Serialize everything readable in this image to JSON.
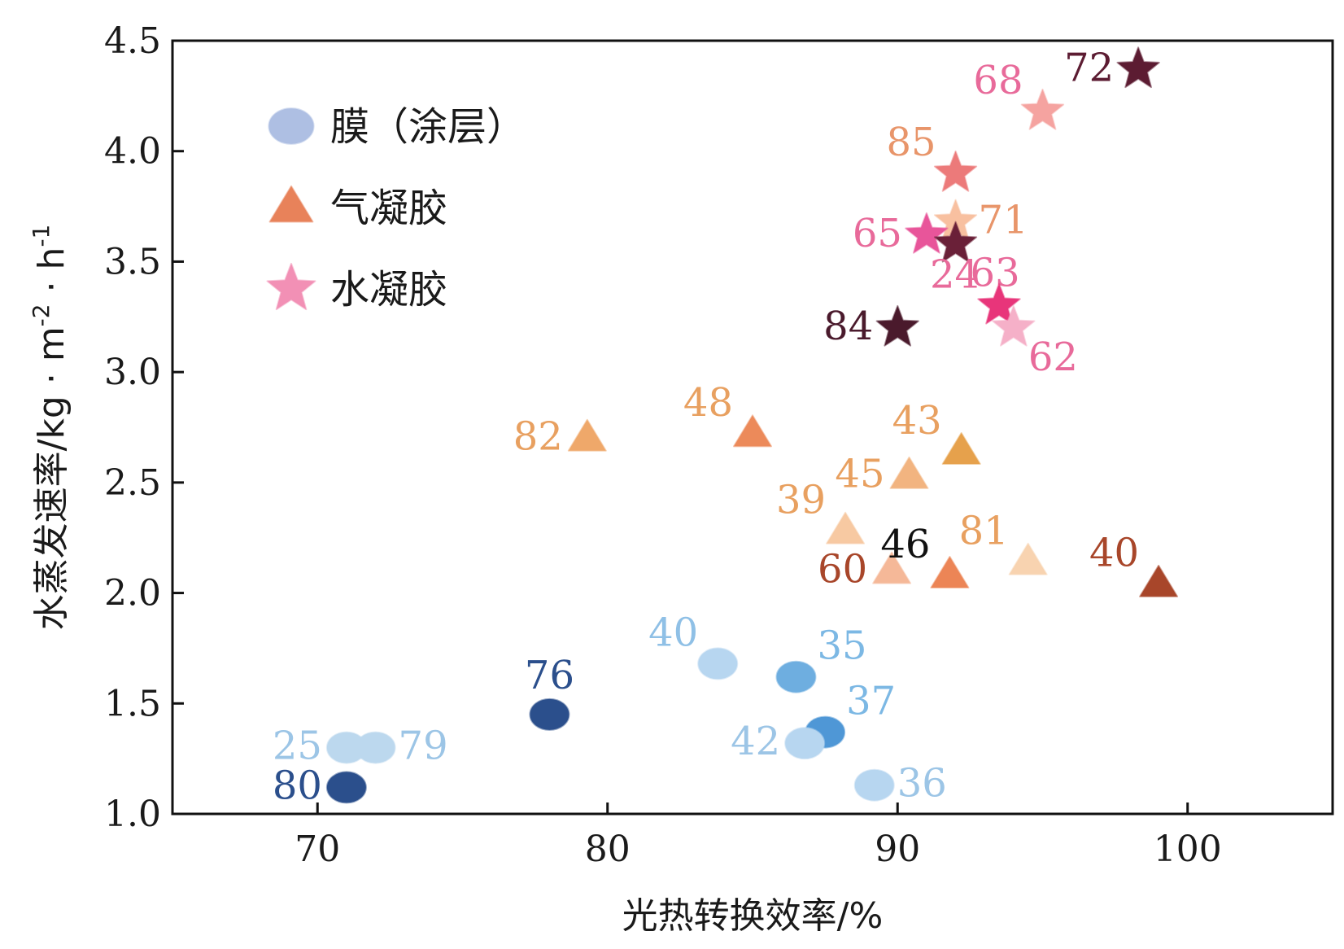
{
  "chart_data": {
    "type": "scatter",
    "title": "",
    "xlabel": "光热转换效率/%",
    "ylabel": "水蒸发速率/kg · m",
    "ylabel_unit_parts": {
      "m_exp": "-2",
      "sep": " · h",
      "h_exp": "-1"
    },
    "xlim": [
      65,
      105
    ],
    "ylim": [
      1.0,
      4.5
    ],
    "xticks": [
      70,
      80,
      90,
      100
    ],
    "xtick_labels": [
      "70",
      "80",
      "90",
      "100"
    ],
    "yticks": [
      1.0,
      1.5,
      2.0,
      2.5,
      3.0,
      3.5,
      4.0,
      4.5
    ],
    "ytick_labels": [
      "1.0",
      "1.5",
      "2.0",
      "2.5",
      "3.0",
      "3.5",
      "4.0",
      "4.5"
    ],
    "grid": false,
    "legend_position": "top-left",
    "legend": [
      {
        "name": "膜（涂层）",
        "marker": "circle",
        "color": "#aebfe3"
      },
      {
        "name": "气凝胶",
        "marker": "triangle",
        "color": "#e8825a"
      },
      {
        "name": "水凝胶",
        "marker": "star",
        "color": "#f290b5"
      }
    ],
    "series": [
      {
        "name": "膜（涂层）",
        "marker": "circle",
        "points": [
          {
            "x": 71.0,
            "y": 1.12,
            "label": "80",
            "color": "#2b4f8c",
            "label_color": "#2b4f8c",
            "label_side": "left"
          },
          {
            "x": 71.0,
            "y": 1.3,
            "label": "25",
            "color": "#bcd8ee",
            "label_color": "#9cc5e6",
            "label_side": "left"
          },
          {
            "x": 72.0,
            "y": 1.3,
            "label": "79",
            "color": "#bcd8ee",
            "label_color": "#9cc5e6",
            "label_side": "right"
          },
          {
            "x": 78.0,
            "y": 1.45,
            "label": "76",
            "color": "#2b4f8c",
            "label_color": "#2b4f8c",
            "label_side": "above"
          },
          {
            "x": 83.8,
            "y": 1.68,
            "label": "40",
            "color": "#b7d6f0",
            "label_color": "#8fc0e6",
            "label_side": "left-above"
          },
          {
            "x": 86.5,
            "y": 1.62,
            "label": "35",
            "color": "#6eaee0",
            "label_color": "#7cb8e4",
            "label_side": "right-above"
          },
          {
            "x": 87.5,
            "y": 1.37,
            "label": "37",
            "color": "#4f97d6",
            "label_color": "#7cb8e4",
            "label_side": "right-above"
          },
          {
            "x": 86.8,
            "y": 1.32,
            "label": "42",
            "color": "#b7d6f0",
            "label_color": "#9cc5e6",
            "label_side": "left"
          },
          {
            "x": 89.2,
            "y": 1.13,
            "label": "36",
            "color": "#b7d6f0",
            "label_color": "#9cc5e6",
            "label_side": "right"
          }
        ]
      },
      {
        "name": "气凝胶",
        "marker": "triangle",
        "points": [
          {
            "x": 79.3,
            "y": 2.7,
            "label": "82",
            "color": "#efa86a",
            "label_color": "#e8a060",
            "label_side": "left"
          },
          {
            "x": 85.0,
            "y": 2.72,
            "label": "48",
            "color": "#ec8a5a",
            "label_color": "#e8a060",
            "label_side": "left-above"
          },
          {
            "x": 92.2,
            "y": 2.64,
            "label": "43",
            "color": "#e6a14c",
            "label_color": "#e8a060",
            "label_side": "left-above"
          },
          {
            "x": 90.4,
            "y": 2.53,
            "label": "45",
            "color": "#f2b480",
            "label_color": "#e8a060",
            "label_side": "left"
          },
          {
            "x": 88.2,
            "y": 2.28,
            "label": "39",
            "color": "#f7c9a2",
            "label_color": "#e8a060",
            "label_side": "left-above"
          },
          {
            "x": 89.8,
            "y": 2.1,
            "label": "60",
            "color": "#f5b898",
            "label_color": "#a8462a",
            "label_side": "left"
          },
          {
            "x": 91.8,
            "y": 2.08,
            "label": "46",
            "color": "#ec8556",
            "label_color": "#111111",
            "label_side": "left-above"
          },
          {
            "x": 94.5,
            "y": 2.14,
            "label": "81",
            "color": "#f8d3b0",
            "label_color": "#e8a060",
            "label_side": "left-above"
          },
          {
            "x": 99.0,
            "y": 2.04,
            "label": "40",
            "color": "#a8462a",
            "label_color": "#a8462a",
            "label_side": "left-above"
          }
        ]
      },
      {
        "name": "水凝胶",
        "marker": "star",
        "points": [
          {
            "x": 98.3,
            "y": 4.37,
            "label": "72",
            "color": "#5c1c32",
            "label_color": "#5c1c32",
            "label_side": "left"
          },
          {
            "x": 95.0,
            "y": 4.18,
            "label": "68",
            "color": "#f5a3a0",
            "label_color": "#e86a9a",
            "label_side": "left-above"
          },
          {
            "x": 92.0,
            "y": 3.9,
            "label": "85",
            "color": "#ec7a7a",
            "label_color": "#e8956a",
            "label_side": "left-above"
          },
          {
            "x": 92.0,
            "y": 3.68,
            "label": "71",
            "color": "#f8c0a0",
            "label_color": "#e8956a",
            "label_side": "right"
          },
          {
            "x": 91.0,
            "y": 3.62,
            "label": "65",
            "color": "#e8559a",
            "label_color": "#e86a9a",
            "label_side": "left"
          },
          {
            "x": 92.0,
            "y": 3.58,
            "label": "63",
            "color": "#6a2038",
            "label_color": "#e86a9a",
            "label_side": "right-below"
          },
          {
            "x": 93.5,
            "y": 3.3,
            "label": "24",
            "color": "#e8357a",
            "label_color": "#e86a9a",
            "label_side": "left-above"
          },
          {
            "x": 94.0,
            "y": 3.2,
            "label": "62",
            "color": "#f5b0c8",
            "label_color": "#e86a9a",
            "label_side": "right-below"
          },
          {
            "x": 90.0,
            "y": 3.2,
            "label": "84",
            "color": "#4a1a2c",
            "label_color": "#4a1a2c",
            "label_side": "left"
          }
        ]
      }
    ]
  }
}
